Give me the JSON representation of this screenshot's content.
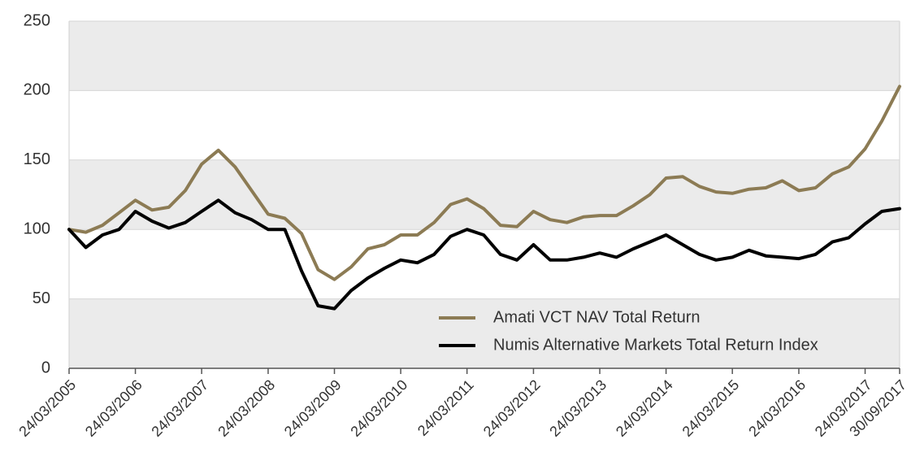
{
  "chart_data": {
    "type": "line",
    "x": [
      "2005-03-24",
      "2005-06-24",
      "2005-09-24",
      "2005-12-24",
      "2006-03-24",
      "2006-06-24",
      "2006-09-24",
      "2006-12-24",
      "2007-03-24",
      "2007-06-24",
      "2007-09-24",
      "2007-12-24",
      "2008-03-24",
      "2008-06-24",
      "2008-09-24",
      "2008-12-24",
      "2009-03-24",
      "2009-06-24",
      "2009-09-24",
      "2009-12-24",
      "2010-03-24",
      "2010-06-24",
      "2010-09-24",
      "2010-12-24",
      "2011-03-24",
      "2011-06-24",
      "2011-09-24",
      "2011-12-24",
      "2012-03-24",
      "2012-06-24",
      "2012-09-24",
      "2012-12-24",
      "2013-03-24",
      "2013-06-24",
      "2013-09-24",
      "2013-12-24",
      "2014-03-24",
      "2014-06-24",
      "2014-09-24",
      "2014-12-24",
      "2015-03-24",
      "2015-06-24",
      "2015-09-24",
      "2015-12-24",
      "2016-03-24",
      "2016-06-24",
      "2016-09-24",
      "2016-12-24",
      "2017-03-24",
      "2017-06-24",
      "2017-09-30"
    ],
    "series": [
      {
        "name": "Amati VCT NAV Total Return",
        "color": "#8c7b54",
        "values": [
          100,
          98,
          103,
          112,
          121,
          114,
          116,
          128,
          147,
          157,
          145,
          128,
          111,
          108,
          97,
          71,
          64,
          73,
          86,
          89,
          96,
          96,
          105,
          118,
          122,
          115,
          103,
          102,
          113,
          107,
          105,
          109,
          110,
          110,
          117,
          125,
          137,
          138,
          131,
          127,
          126,
          129,
          130,
          135,
          128,
          130,
          140,
          145,
          158,
          178,
          203
        ]
      },
      {
        "name": "Numis Alternative Markets Total Return Index",
        "color": "#000000",
        "values": [
          100,
          87,
          96,
          100,
          113,
          106,
          101,
          105,
          113,
          121,
          112,
          107,
          100,
          100,
          70,
          45,
          43,
          56,
          65,
          72,
          78,
          76,
          82,
          95,
          100,
          96,
          82,
          78,
          89,
          78,
          78,
          80,
          83,
          80,
          86,
          91,
          96,
          89,
          82,
          78,
          80,
          85,
          81,
          80,
          79,
          82,
          91,
          94,
          104,
          113,
          115
        ]
      }
    ],
    "xlim": [
      "2005-03-24",
      "2017-09-30"
    ],
    "xticks": [
      {
        "value": "2005-03-24",
        "label": "24/03/2005"
      },
      {
        "value": "2006-03-24",
        "label": "24/03/2006"
      },
      {
        "value": "2007-03-24",
        "label": "24/03/2007"
      },
      {
        "value": "2008-03-24",
        "label": "24/03/2008"
      },
      {
        "value": "2009-03-24",
        "label": "24/03/2009"
      },
      {
        "value": "2010-03-24",
        "label": "24/03/2010"
      },
      {
        "value": "2011-03-24",
        "label": "24/03/2011"
      },
      {
        "value": "2012-03-24",
        "label": "24/03/2012"
      },
      {
        "value": "2013-03-24",
        "label": "24/03/2013"
      },
      {
        "value": "2014-03-24",
        "label": "24/03/2014"
      },
      {
        "value": "2015-03-24",
        "label": "24/03/2015"
      },
      {
        "value": "2016-03-24",
        "label": "24/03/2016"
      },
      {
        "value": "2017-03-24",
        "label": "24/03/2017"
      },
      {
        "value": "2017-09-30",
        "label": "30/09/2017"
      }
    ],
    "ylim": [
      0,
      250
    ],
    "yticks": [
      0,
      50,
      100,
      150,
      200,
      250
    ],
    "grid": true,
    "legend": "lower right"
  }
}
